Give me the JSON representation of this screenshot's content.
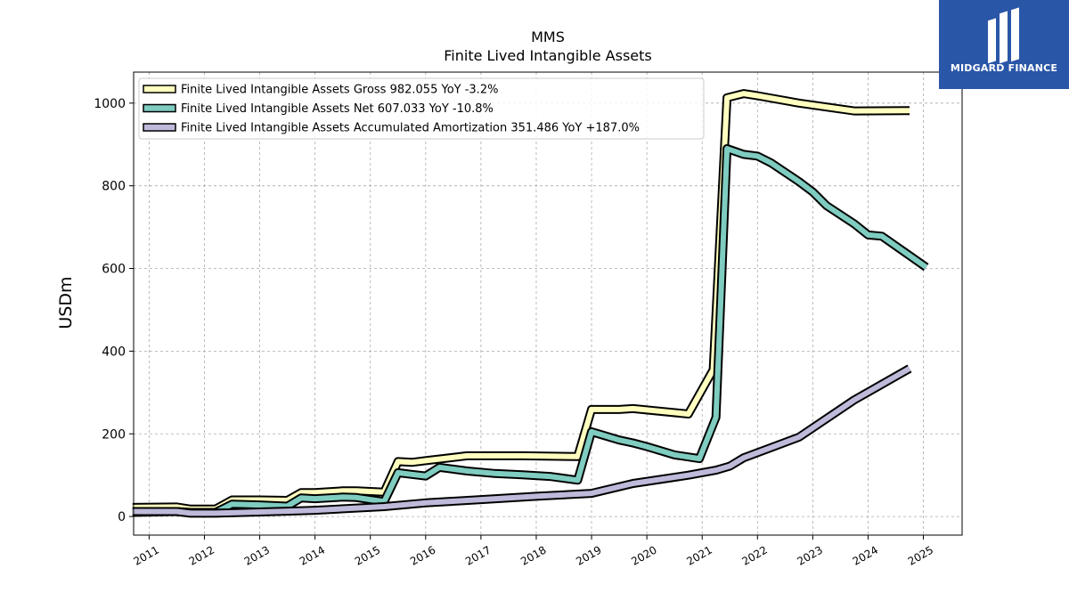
{
  "brand": {
    "name": "MIDGARD FINANCE",
    "bg_color": "#2a56a8"
  },
  "chart_data": {
    "type": "line",
    "title": "MMS",
    "subtitle": "Finite Lived Intangible Assets",
    "ylabel": "USDm",
    "xlabel": "",
    "xlim": [
      2010.72,
      2025.7
    ],
    "ylim": [
      -45,
      1075
    ],
    "yticks": [
      0,
      200,
      400,
      600,
      800,
      1000
    ],
    "xticks": [
      2011,
      2012,
      2013,
      2014,
      2015,
      2016,
      2017,
      2018,
      2019,
      2020,
      2021,
      2022,
      2023,
      2024,
      2025
    ],
    "grid": true,
    "legend_position": "top-left",
    "series": [
      {
        "name": "Finite Lived Intangible Assets Gross  982.055 YoY -3.2%",
        "color": "#ffffbf",
        "points": [
          [
            2010.7,
            22
          ],
          [
            2011.5,
            23
          ],
          [
            2011.75,
            18
          ],
          [
            2012.2,
            18
          ],
          [
            2012.5,
            40
          ],
          [
            2013.0,
            40
          ],
          [
            2013.5,
            39
          ],
          [
            2013.75,
            58
          ],
          [
            2014.0,
            58
          ],
          [
            2014.5,
            62
          ],
          [
            2014.75,
            62
          ],
          [
            2015.25,
            59
          ],
          [
            2015.5,
            133
          ],
          [
            2015.75,
            131
          ],
          [
            2016.0,
            135
          ],
          [
            2016.75,
            147
          ],
          [
            2017.75,
            147
          ],
          [
            2018.75,
            145
          ],
          [
            2019.0,
            259
          ],
          [
            2019.5,
            259
          ],
          [
            2019.75,
            261
          ],
          [
            2020.75,
            248
          ],
          [
            2021.2,
            355
          ],
          [
            2021.45,
            1013
          ],
          [
            2021.75,
            1023
          ],
          [
            2022.0,
            1018
          ],
          [
            2022.75,
            1000
          ],
          [
            2023.75,
            981
          ],
          [
            2024.75,
            982
          ]
        ]
      },
      {
        "name": "Finite Lived Intangible Assets Net  607.033 YoY -10.8%",
        "color": "#7fccc0",
        "points": [
          [
            2010.7,
            10
          ],
          [
            2011.5,
            12
          ],
          [
            2011.75,
            10
          ],
          [
            2012.2,
            10
          ],
          [
            2012.5,
            30
          ],
          [
            2013.0,
            28
          ],
          [
            2013.5,
            25
          ],
          [
            2013.75,
            45
          ],
          [
            2014.0,
            43
          ],
          [
            2014.5,
            47
          ],
          [
            2014.75,
            46
          ],
          [
            2015.25,
            36
          ],
          [
            2015.5,
            106
          ],
          [
            2015.75,
            102
          ],
          [
            2016.0,
            98
          ],
          [
            2016.25,
            119
          ],
          [
            2016.75,
            110
          ],
          [
            2017.25,
            104
          ],
          [
            2017.75,
            101
          ],
          [
            2018.25,
            97
          ],
          [
            2018.75,
            88
          ],
          [
            2019.0,
            205
          ],
          [
            2019.5,
            185
          ],
          [
            2019.75,
            178
          ],
          [
            2020.0,
            169
          ],
          [
            2020.5,
            149
          ],
          [
            2020.95,
            140
          ],
          [
            2021.25,
            240
          ],
          [
            2021.45,
            890
          ],
          [
            2021.75,
            876
          ],
          [
            2022.0,
            872
          ],
          [
            2022.25,
            855
          ],
          [
            2022.75,
            810
          ],
          [
            2023.0,
            785
          ],
          [
            2023.25,
            752
          ],
          [
            2023.75,
            708
          ],
          [
            2024.0,
            681
          ],
          [
            2024.25,
            678
          ],
          [
            2025.05,
            603
          ]
        ]
      },
      {
        "name": "Finite Lived Intangible Assets Accumulated Amortization  351.486 YoY +187.0%",
        "color": "#bebada",
        "points": [
          [
            2010.7,
            12
          ],
          [
            2011.5,
            12
          ],
          [
            2011.75,
            8
          ],
          [
            2012.2,
            8
          ],
          [
            2012.5,
            9
          ],
          [
            2013.5,
            13
          ],
          [
            2014.0,
            15
          ],
          [
            2015.25,
            24
          ],
          [
            2016.0,
            33
          ],
          [
            2017.0,
            41
          ],
          [
            2018.0,
            49
          ],
          [
            2019.0,
            56
          ],
          [
            2019.75,
            80
          ],
          [
            2020.75,
            100
          ],
          [
            2021.25,
            112
          ],
          [
            2021.5,
            122
          ],
          [
            2021.75,
            142
          ],
          [
            2022.75,
            192
          ],
          [
            2023.75,
            282
          ],
          [
            2024.0,
            301
          ],
          [
            2024.75,
            358
          ]
        ]
      }
    ]
  }
}
